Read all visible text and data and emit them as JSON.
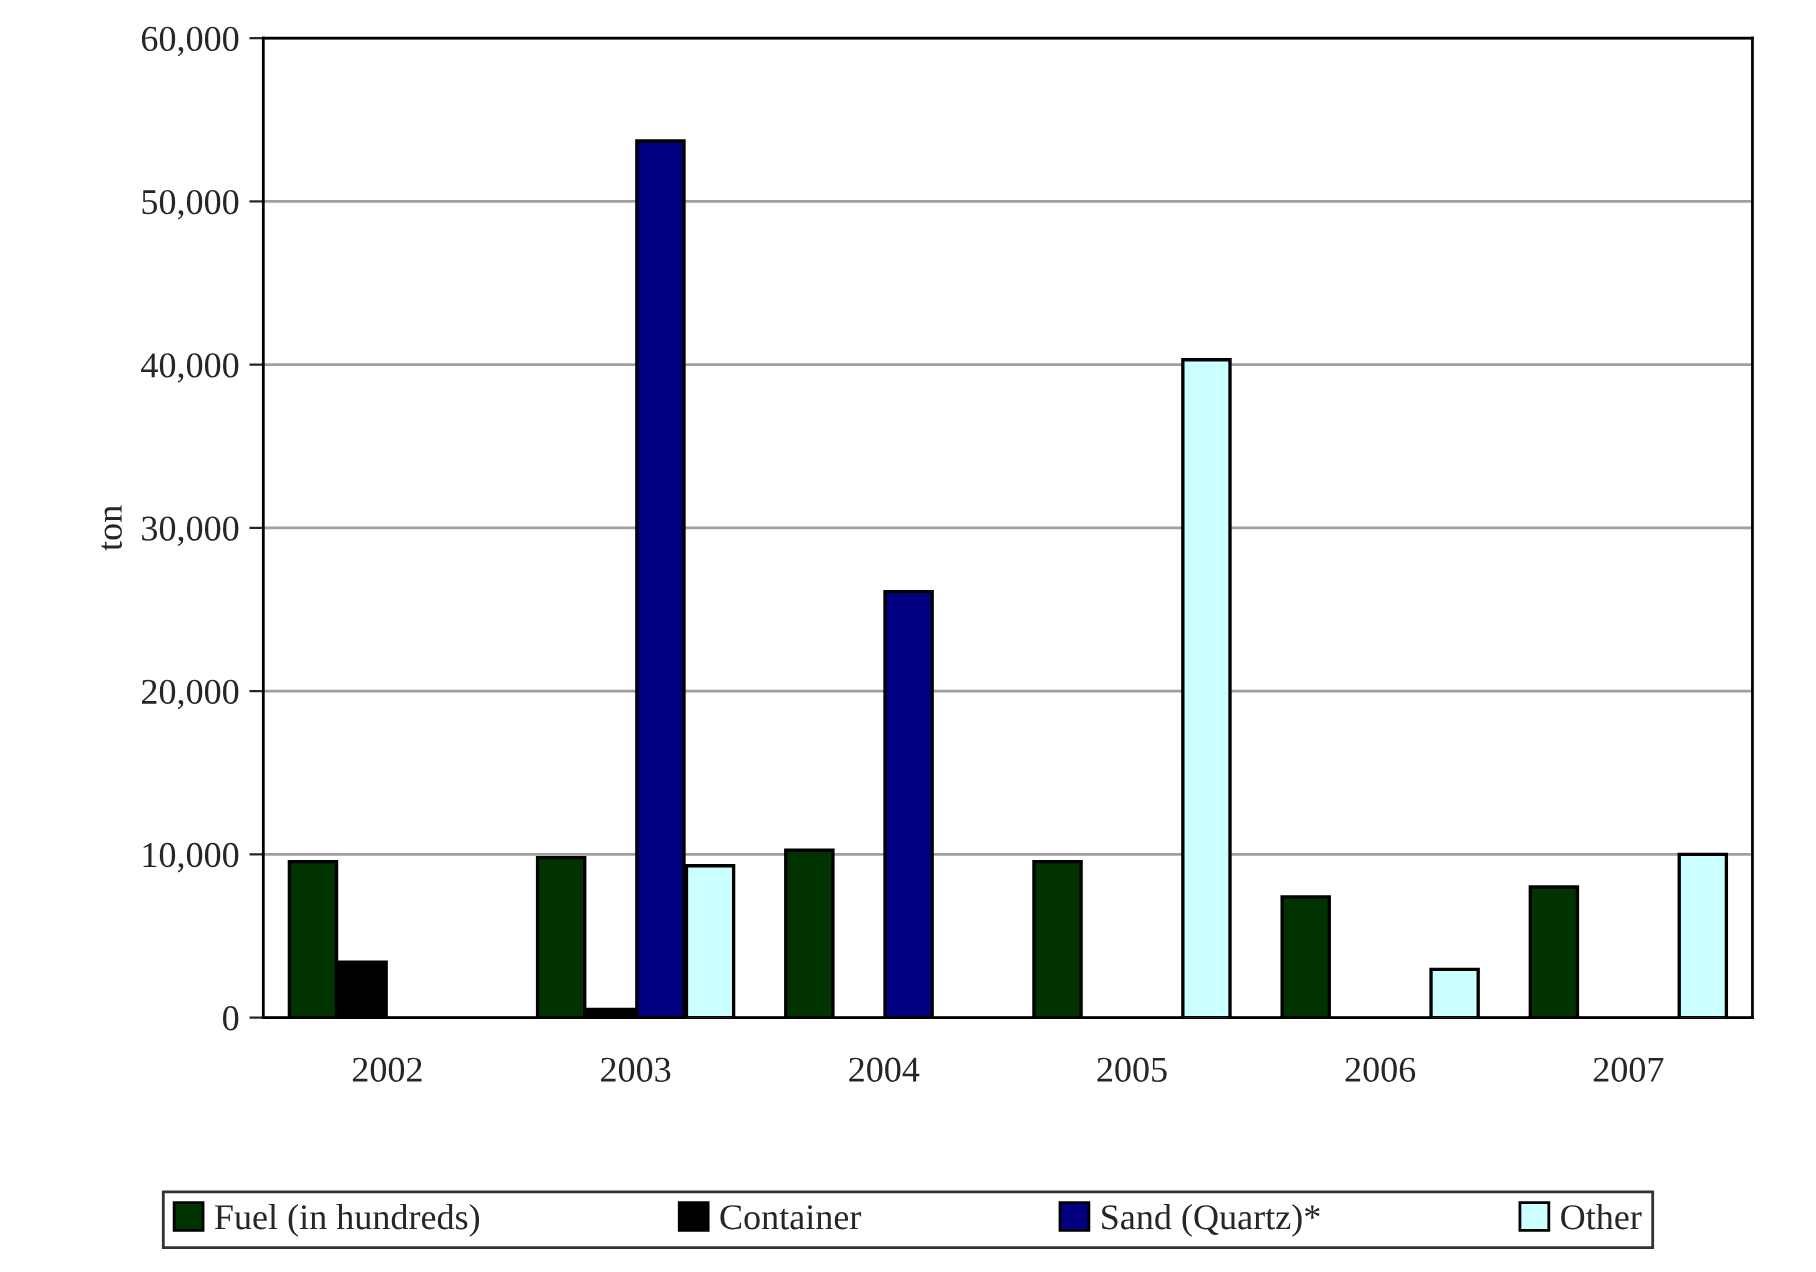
{
  "chart_data": {
    "type": "bar",
    "ylabel": "ton",
    "categories": [
      "2002",
      "2003",
      "2004",
      "2005",
      "2006",
      "2007"
    ],
    "series": [
      {
        "name": "Fuel (in hundreds)",
        "color": "#003300",
        "values": [
          9550,
          9800,
          10250,
          9550,
          7400,
          8000
        ]
      },
      {
        "name": "Container",
        "color": "#000000",
        "values": [
          3400,
          500,
          null,
          null,
          null,
          null
        ]
      },
      {
        "name": "Sand (Quartz)*",
        "color": "#000080",
        "values": [
          null,
          53700,
          26100,
          null,
          null,
          null
        ]
      },
      {
        "name": "Other",
        "color": "#ccffff",
        "values": [
          null,
          9300,
          null,
          40300,
          2950,
          10000
        ]
      }
    ],
    "ylim": [
      0,
      60000
    ],
    "yticks": [
      {
        "value": 0,
        "label": "0"
      },
      {
        "value": 10000,
        "label": "10,000"
      },
      {
        "value": 20000,
        "label": "20,000"
      },
      {
        "value": 30000,
        "label": "30,000"
      },
      {
        "value": 40000,
        "label": "40,000"
      },
      {
        "value": 50000,
        "label": "50,000"
      },
      {
        "value": 60000,
        "label": "60,000"
      }
    ],
    "grid": "y",
    "legend": "bottom"
  }
}
